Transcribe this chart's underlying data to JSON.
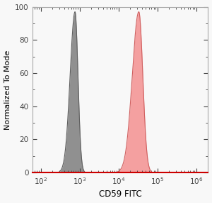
{
  "title": "",
  "xlabel": "CD59 FITC",
  "ylabel": "Normalized To Mode",
  "xlim_log": [
    1.78,
    6.3
  ],
  "ylim": [
    0,
    100
  ],
  "yticks": [
    0,
    20,
    40,
    60,
    80,
    100
  ],
  "xtick_positions": [
    100,
    1000,
    10000,
    100000,
    1000000
  ],
  "gray_peak_log10": 2.88,
  "gray_sigma_log10": 0.09,
  "gray_fill_color": "#909090",
  "gray_edge_color": "#606060",
  "pink_peak_log10": 4.52,
  "pink_sigma_log10": 0.12,
  "pink_fill_color": "#F4A0A0",
  "pink_edge_color": "#d06060",
  "background_color": "#f8f8f8",
  "peak_height": 97,
  "xlabel_fontsize": 8.5,
  "ylabel_fontsize": 8.0,
  "tick_fontsize": 7.5,
  "bottom_spine_color": "#cc0000",
  "other_spine_color": "#aaaaaa"
}
